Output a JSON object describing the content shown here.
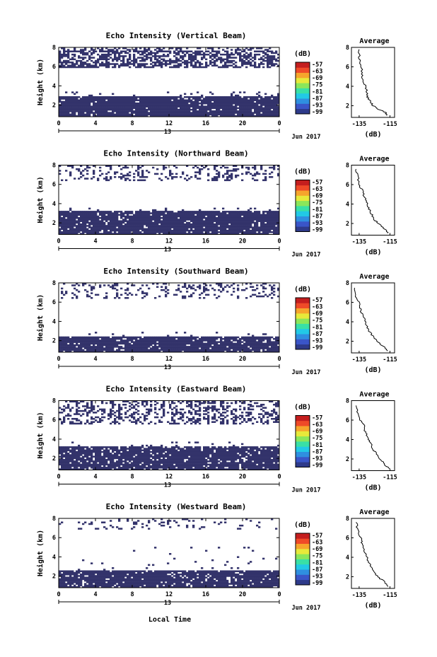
{
  "figure": {
    "date_label": "Jun 2017",
    "xlabel": "Local Time",
    "ylabel": "Height (km)",
    "colorbar_unit": "(dB)",
    "colorbar_ticks": [
      "-57",
      "-63",
      "-69",
      "-75",
      "-81",
      "-87",
      "-93",
      "-99"
    ],
    "colorbar_colors": [
      "#2e3a8a",
      "#3a55c8",
      "#2f8fe0",
      "#22c9e6",
      "#39e0a6",
      "#8be65a",
      "#e7e93a",
      "#f6a52c",
      "#ef4a28",
      "#c41e1e"
    ],
    "mask_color": "#33336b",
    "x_ticks": [
      "0",
      "4",
      "8",
      "12",
      "16",
      "20",
      "0"
    ],
    "x_range": [
      0,
      24
    ],
    "y_ticks": [
      "2",
      "4",
      "6",
      "8"
    ],
    "y_range": [
      0.8,
      8
    ],
    "date_day": "13",
    "avg_title": "Average",
    "avg_xlabel": "(dB)",
    "avg_x_ticks": [
      "-135",
      "-115"
    ],
    "avg_y_ticks": [
      "2",
      "4",
      "6",
      "8"
    ]
  },
  "chart_data": [
    {
      "type": "heatmap",
      "title": "Echo Intensity (Vertical Beam)",
      "cloud_layers": [
        {
          "from": 0.8,
          "to": 2.9,
          "density": 0.94
        },
        {
          "from": 2.9,
          "to": 3.4,
          "density": 0.08
        },
        {
          "from": 5.9,
          "to": 7.6,
          "density": 0.62
        },
        {
          "from": 7.6,
          "to": 8.0,
          "density": 0.3
        }
      ],
      "average_profile": {
        "x": [
          -117,
          -118,
          -123,
          -126,
          -128,
          -130,
          -130,
          -131,
          -133,
          -133,
          -134,
          -135,
          -135
        ],
        "y": [
          1.0,
          1.3,
          1.7,
          2.0,
          2.5,
          3.0,
          3.6,
          4.1,
          4.7,
          5.4,
          6.2,
          7.0,
          7.8
        ],
        "xlim": [
          -140,
          -112
        ],
        "ylim": [
          0.8,
          8
        ]
      }
    },
    {
      "type": "heatmap",
      "title": "Echo Intensity (Northward Beam)",
      "cloud_layers": [
        {
          "from": 0.8,
          "to": 3.2,
          "density": 0.93
        },
        {
          "from": 3.2,
          "to": 3.6,
          "density": 0.06
        },
        {
          "from": 6.3,
          "to": 8.0,
          "density": 0.2
        }
      ],
      "average_profile": {
        "x": [
          -116,
          -118,
          -122,
          -125,
          -127,
          -129,
          -130,
          -132,
          -133,
          -135,
          -136,
          -137
        ],
        "y": [
          1.0,
          1.4,
          1.9,
          2.4,
          3.0,
          3.6,
          4.2,
          4.8,
          5.4,
          6.0,
          6.8,
          7.6
        ],
        "xlim": [
          -140,
          -112
        ],
        "ylim": [
          0.8,
          8
        ]
      }
    },
    {
      "type": "heatmap",
      "title": "Echo Intensity (Southward Beam)",
      "cloud_layers": [
        {
          "from": 0.8,
          "to": 2.4,
          "density": 0.9
        },
        {
          "from": 2.4,
          "to": 3.0,
          "density": 0.05
        },
        {
          "from": 6.4,
          "to": 8.0,
          "density": 0.16
        }
      ],
      "average_profile": {
        "x": [
          -116,
          -118,
          -122,
          -125,
          -128,
          -130,
          -131,
          -133,
          -134,
          -135,
          -137,
          -138
        ],
        "y": [
          1.0,
          1.3,
          1.8,
          2.3,
          2.9,
          3.5,
          4.1,
          4.7,
          5.3,
          5.9,
          6.6,
          7.5
        ],
        "xlim": [
          -140,
          -112
        ],
        "ylim": [
          0.8,
          8
        ]
      }
    },
    {
      "type": "heatmap",
      "title": "Echo Intensity (Eastward Beam)",
      "cloud_layers": [
        {
          "from": 0.8,
          "to": 3.3,
          "density": 0.88
        },
        {
          "from": 3.3,
          "to": 3.8,
          "density": 0.06
        },
        {
          "from": 5.6,
          "to": 8.0,
          "density": 0.3
        }
      ],
      "average_profile": {
        "x": [
          -116,
          -118,
          -121,
          -124,
          -126,
          -128,
          -129,
          -131,
          -132,
          -134,
          -136,
          -137
        ],
        "y": [
          1.0,
          1.4,
          1.9,
          2.5,
          3.1,
          3.7,
          4.2,
          4.8,
          5.4,
          6.0,
          6.7,
          7.5
        ],
        "xlim": [
          -140,
          -112
        ],
        "ylim": [
          0.8,
          8
        ]
      }
    },
    {
      "type": "heatmap",
      "title": "Echo Intensity (Westward Beam)",
      "cloud_layers": [
        {
          "from": 0.8,
          "to": 2.6,
          "density": 0.9
        },
        {
          "from": 2.6,
          "to": 5.0,
          "density": 0.02
        },
        {
          "from": 6.8,
          "to": 8.0,
          "density": 0.1
        }
      ],
      "average_profile": {
        "x": [
          -116,
          -118,
          -122,
          -125,
          -127,
          -129,
          -130,
          -132,
          -133,
          -134,
          -136,
          -137
        ],
        "y": [
          1.0,
          1.4,
          1.9,
          2.4,
          3.0,
          3.6,
          4.2,
          4.8,
          5.4,
          6.0,
          6.8,
          7.6
        ],
        "xlim": [
          -140,
          -112
        ],
        "ylim": [
          0.8,
          8
        ]
      }
    }
  ]
}
